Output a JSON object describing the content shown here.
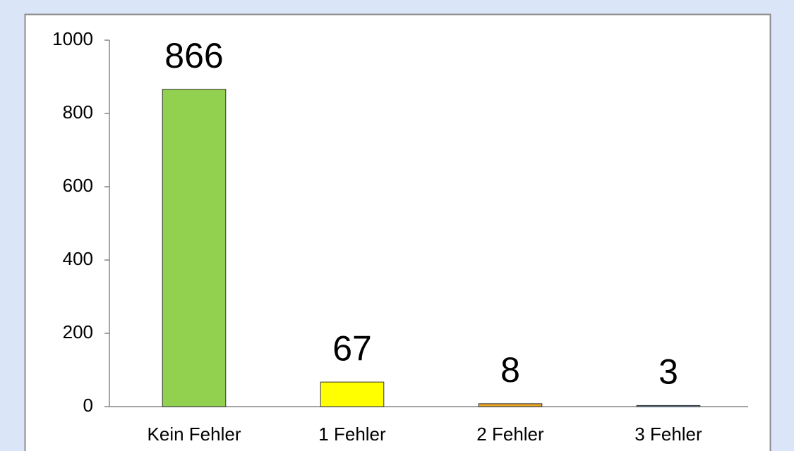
{
  "chart_data": {
    "type": "bar",
    "categories": [
      "Kein Fehler",
      "1 Fehler",
      "2 Fehler",
      "3 Fehler"
    ],
    "values": [
      866,
      67,
      8,
      3
    ],
    "colors": [
      "#92d050",
      "#ffff00",
      "#e8a522",
      "#6f9fd8"
    ],
    "ylim": [
      0,
      1000
    ],
    "yticks": [
      0,
      200,
      400,
      600,
      800,
      1000
    ],
    "grid": false
  }
}
